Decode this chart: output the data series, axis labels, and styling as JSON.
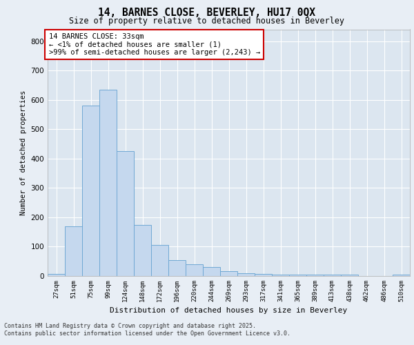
{
  "title_line1": "14, BARNES CLOSE, BEVERLEY, HU17 0QX",
  "title_line2": "Size of property relative to detached houses in Beverley",
  "xlabel": "Distribution of detached houses by size in Beverley",
  "ylabel": "Number of detached properties",
  "bar_labels": [
    "27sqm",
    "51sqm",
    "75sqm",
    "99sqm",
    "124sqm",
    "148sqm",
    "172sqm",
    "196sqm",
    "220sqm",
    "244sqm",
    "269sqm",
    "293sqm",
    "317sqm",
    "341sqm",
    "365sqm",
    "389sqm",
    "413sqm",
    "438sqm",
    "462sqm",
    "486sqm",
    "510sqm"
  ],
  "bar_heights": [
    7,
    170,
    580,
    635,
    425,
    175,
    105,
    55,
    40,
    30,
    17,
    10,
    8,
    5,
    4,
    4,
    4,
    4,
    0,
    0,
    4
  ],
  "bar_color": "#c5d8ee",
  "bar_edge_color": "#6fa8d4",
  "annotation_text": "14 BARNES CLOSE: 33sqm\n← <1% of detached houses are smaller (1)\n>99% of semi-detached houses are larger (2,243) →",
  "ylim": [
    0,
    840
  ],
  "yticks": [
    0,
    100,
    200,
    300,
    400,
    500,
    600,
    700,
    800
  ],
  "bg_color": "#e8eef5",
  "plot_bg_color": "#dce6f0",
  "footer": "Contains HM Land Registry data © Crown copyright and database right 2025.\nContains public sector information licensed under the Open Government Licence v3.0."
}
